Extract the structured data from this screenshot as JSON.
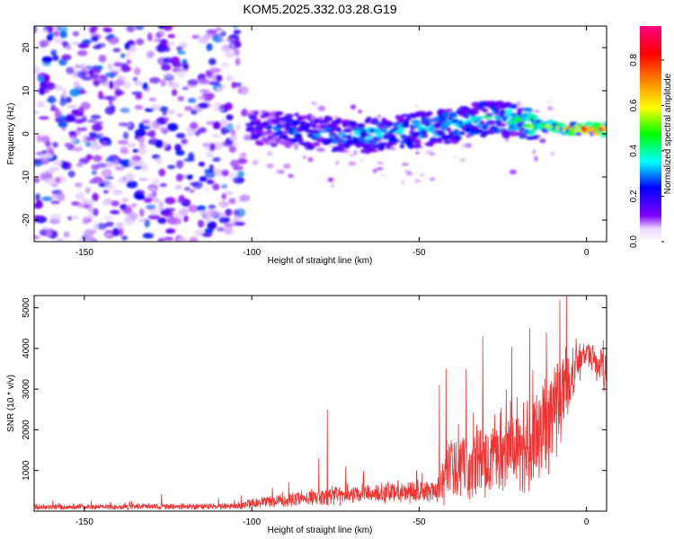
{
  "title": "KOM5.2025.332.03.28.G19",
  "chart_data": [
    {
      "type": "heatmap",
      "xlabel": "Height of straight line (km)",
      "ylabel": "Frequency (Hz)",
      "xlim": [
        -165,
        6
      ],
      "ylim": [
        -25,
        25
      ],
      "xticks": [
        -150,
        -100,
        -50,
        0
      ],
      "yticks": [
        -20,
        -10,
        0,
        10,
        20
      ],
      "colorbar": {
        "label": "Normalized spectral amplitude",
        "range": [
          0,
          0.95
        ],
        "ticks": [
          0.0,
          0.2,
          0.4,
          0.6,
          0.8
        ],
        "tick_labels": [
          "0.0",
          "0.2",
          "0.4",
          "0.6",
          "0.8"
        ],
        "colormap": [
          "#ffffff",
          "#8000ff",
          "#0000ff",
          "#00ffff",
          "#00ff00",
          "#ffff00",
          "#ff8000",
          "#ff0000",
          "#ff0080"
        ]
      },
      "noise_region": {
        "x": [
          -165,
          -102
        ],
        "freq": [
          -25,
          25
        ],
        "amplitude": [
          0.05,
          0.3
        ]
      },
      "signal_band": [
        {
          "x": -100,
          "freq": 1.5
        },
        {
          "x": -90,
          "freq": 1.0
        },
        {
          "x": -80,
          "freq": 0.0
        },
        {
          "x": -70,
          "freq": -0.5
        },
        {
          "x": -60,
          "freq": 0.0
        },
        {
          "x": -50,
          "freq": 1.0
        },
        {
          "x": -40,
          "freq": 2.0
        },
        {
          "x": -30,
          "freq": 3.5
        },
        {
          "x": -20,
          "freq": 3.0
        },
        {
          "x": -10,
          "freq": 1.5
        },
        {
          "x": 0,
          "freq": 1.0
        },
        {
          "x": 5,
          "freq": 1.0
        }
      ],
      "signal_amplitude_trend": [
        {
          "x": -100,
          "amplitude": 0.25
        },
        {
          "x": -70,
          "amplitude": 0.35
        },
        {
          "x": -40,
          "amplitude": 0.4
        },
        {
          "x": -20,
          "amplitude": 0.45
        },
        {
          "x": -10,
          "amplitude": 0.6
        },
        {
          "x": 0,
          "amplitude": 0.9
        }
      ]
    },
    {
      "type": "line",
      "xlabel": "Height of straight line (km)",
      "ylabel": "SNR (10 * v/v)",
      "xlim": [
        -165,
        6
      ],
      "ylim": [
        0,
        5300
      ],
      "xticks": [
        -150,
        -100,
        -50,
        0
      ],
      "yticks": [
        1000,
        2000,
        3000,
        4000,
        5000
      ],
      "color": "#ee3333",
      "series": [
        {
          "name": "SNR",
          "envelope": [
            {
              "x": -165,
              "base": 100,
              "amp": 80
            },
            {
              "x": -105,
              "base": 120,
              "amp": 90
            },
            {
              "x": -100,
              "base": 200,
              "amp": 150
            },
            {
              "x": -80,
              "base": 350,
              "amp": 250
            },
            {
              "x": -60,
              "base": 450,
              "amp": 300
            },
            {
              "x": -45,
              "base": 500,
              "amp": 350
            },
            {
              "x": -42,
              "base": 1000,
              "amp": 900
            },
            {
              "x": -30,
              "base": 1300,
              "amp": 1100
            },
            {
              "x": -20,
              "base": 1500,
              "amp": 1300
            },
            {
              "x": -10,
              "base": 2300,
              "amp": 1500
            },
            {
              "x": -5,
              "base": 3300,
              "amp": 1000
            },
            {
              "x": 0,
              "base": 3900,
              "amp": 300
            },
            {
              "x": 6,
              "base": 3400,
              "amp": 800
            }
          ],
          "spikes": [
            {
              "x": -127,
              "y": 420
            },
            {
              "x": -80,
              "y": 1300
            },
            {
              "x": -77.5,
              "y": 2500
            },
            {
              "x": -72,
              "y": 1100
            },
            {
              "x": -44,
              "y": 3100
            },
            {
              "x": -42,
              "y": 3500
            },
            {
              "x": -36,
              "y": 3500
            },
            {
              "x": -31,
              "y": 4300
            },
            {
              "x": -24,
              "y": 3000
            },
            {
              "x": -17,
              "y": 4500
            },
            {
              "x": -12,
              "y": 4400
            },
            {
              "x": -8,
              "y": 5200
            },
            {
              "x": -6,
              "y": 5320
            },
            {
              "x": 5,
              "y": 4200
            }
          ]
        }
      ]
    }
  ]
}
